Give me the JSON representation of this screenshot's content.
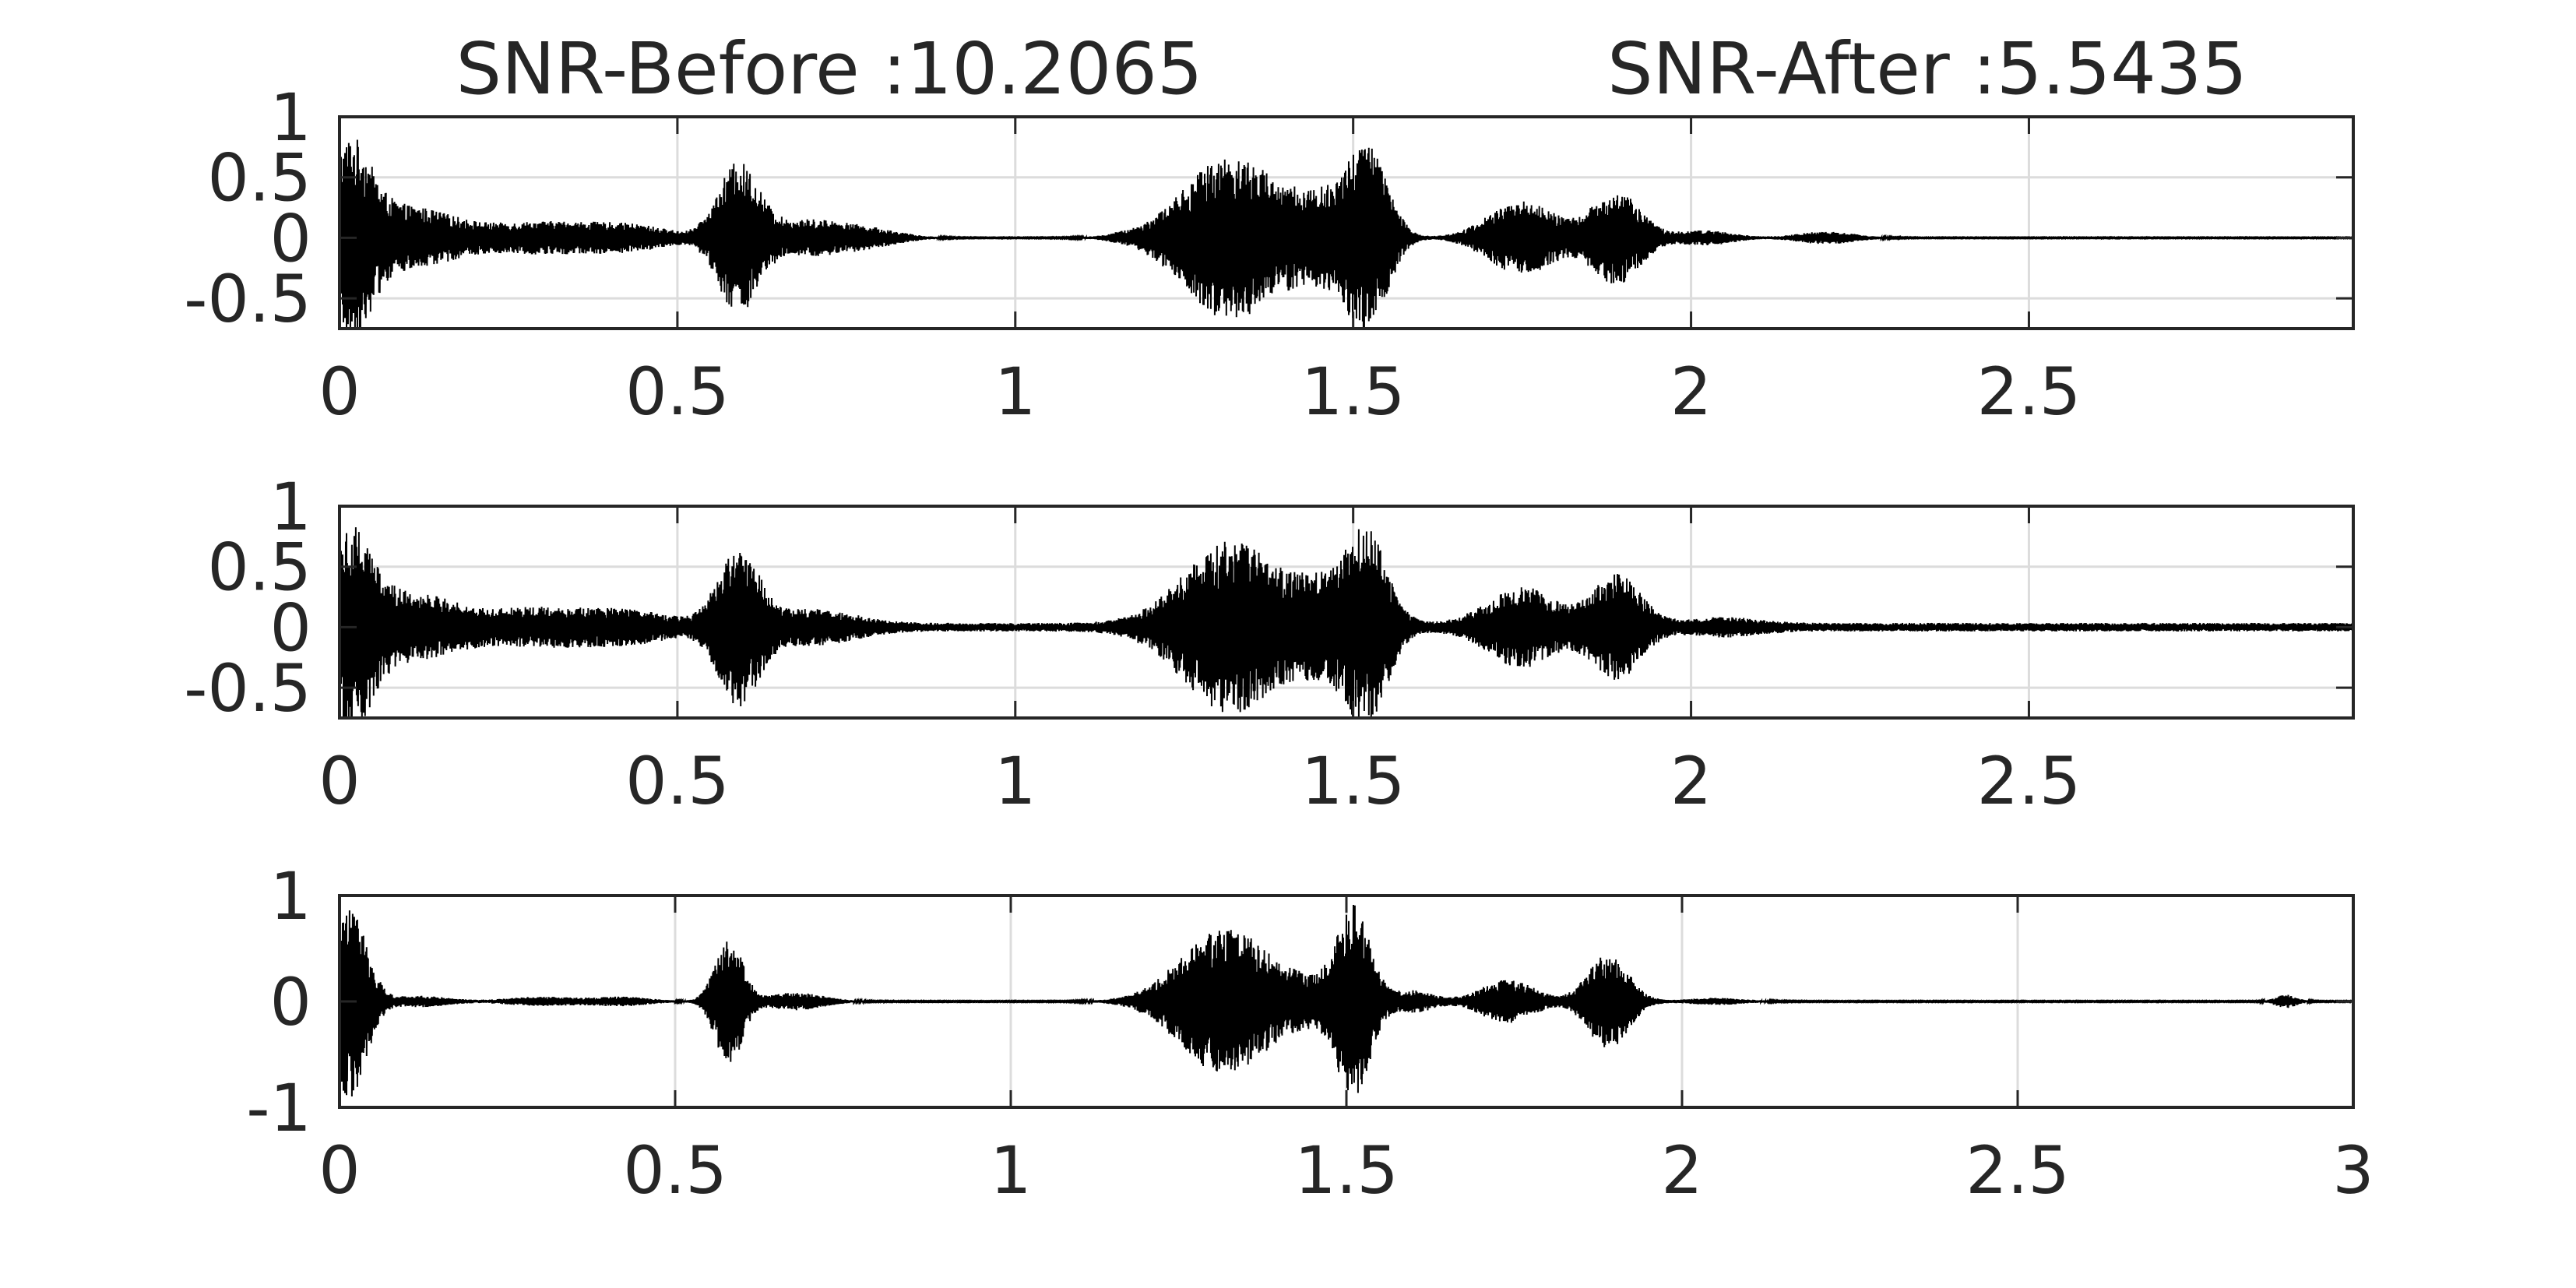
{
  "figure": {
    "titles": {
      "before": "SNR-Before :10.2065",
      "after": "SNR-After :5.5435"
    }
  },
  "colors": {
    "waveform": "#000000",
    "axes": "#262626",
    "grid": "#dcdcdc",
    "background": "#ffffff"
  },
  "chart_data": [
    {
      "type": "line",
      "name": "panel-1",
      "grid": true,
      "xlim": [
        0,
        2.98
      ],
      "ylim": [
        -0.75,
        1
      ],
      "xticks": [
        0,
        0.5,
        1,
        1.5,
        2,
        2.5
      ],
      "xtick_labels": [
        "0",
        "0.5",
        "1",
        "1.5",
        "2",
        "2.5"
      ],
      "yticks": [
        1,
        0.5,
        0,
        -0.5
      ],
      "ytick_labels": [
        "1",
        "0.5",
        "0",
        "-0.5"
      ],
      "noise_floor": 0.003,
      "bursts": [
        {
          "center": 0.015,
          "width": 0.03,
          "amp": 0.75
        },
        {
          "center": 0.08,
          "width": 0.05,
          "amp": 0.2
        },
        {
          "center": 0.15,
          "width": 0.05,
          "amp": 0.12
        },
        {
          "center": 0.26,
          "width": 0.06,
          "amp": 0.08
        },
        {
          "center": 0.36,
          "width": 0.07,
          "amp": 0.1
        },
        {
          "center": 0.45,
          "width": 0.05,
          "amp": 0.06
        },
        {
          "center": 0.59,
          "width": 0.03,
          "amp": 0.6
        },
        {
          "center": 0.7,
          "width": 0.06,
          "amp": 0.15
        },
        {
          "center": 0.8,
          "width": 0.04,
          "amp": 0.04
        },
        {
          "center": 1.15,
          "width": 0.015,
          "amp": 0.01
        },
        {
          "center": 1.32,
          "width": 0.07,
          "amp": 0.68
        },
        {
          "center": 1.45,
          "width": 0.035,
          "amp": 0.25
        },
        {
          "center": 1.52,
          "width": 0.03,
          "amp": 0.75
        },
        {
          "center": 1.75,
          "width": 0.05,
          "amp": 0.3
        },
        {
          "center": 1.89,
          "width": 0.035,
          "amp": 0.38
        },
        {
          "center": 2.02,
          "width": 0.04,
          "amp": 0.06
        },
        {
          "center": 2.2,
          "width": 0.04,
          "amp": 0.05
        }
      ]
    },
    {
      "type": "line",
      "name": "panel-2",
      "grid": true,
      "xlim": [
        0,
        2.98
      ],
      "ylim": [
        -0.75,
        1
      ],
      "xticks": [
        0,
        0.5,
        1,
        1.5,
        2,
        2.5
      ],
      "xtick_labels": [
        "0",
        "0.5",
        "1",
        "1.5",
        "2",
        "2.5"
      ],
      "yticks": [
        1,
        0.5,
        0,
        -0.5
      ],
      "ytick_labels": [
        "1",
        "0.5",
        "0",
        "-0.5"
      ],
      "noise_floor": 0.035,
      "bursts": [
        {
          "center": 0.015,
          "width": 0.03,
          "amp": 0.75
        },
        {
          "center": 0.08,
          "width": 0.05,
          "amp": 0.2
        },
        {
          "center": 0.15,
          "width": 0.05,
          "amp": 0.12
        },
        {
          "center": 0.26,
          "width": 0.06,
          "amp": 0.08
        },
        {
          "center": 0.36,
          "width": 0.07,
          "amp": 0.1
        },
        {
          "center": 0.45,
          "width": 0.05,
          "amp": 0.06
        },
        {
          "center": 0.59,
          "width": 0.03,
          "amp": 0.6
        },
        {
          "center": 0.7,
          "width": 0.06,
          "amp": 0.12
        },
        {
          "center": 1.32,
          "width": 0.07,
          "amp": 0.68
        },
        {
          "center": 1.45,
          "width": 0.035,
          "amp": 0.25
        },
        {
          "center": 1.52,
          "width": 0.03,
          "amp": 0.75
        },
        {
          "center": 1.75,
          "width": 0.05,
          "amp": 0.3
        },
        {
          "center": 1.89,
          "width": 0.035,
          "amp": 0.4
        },
        {
          "center": 2.05,
          "width": 0.05,
          "amp": 0.05
        }
      ]
    },
    {
      "type": "line",
      "name": "panel-3",
      "grid": true,
      "xlim": [
        0,
        3
      ],
      "ylim": [
        -1,
        1
      ],
      "xticks": [
        0,
        0.5,
        1,
        1.5,
        2,
        2.5,
        3
      ],
      "xtick_labels": [
        "0",
        "0.5",
        "1",
        "1.5",
        "2",
        "2.5",
        "3"
      ],
      "yticks": [
        1,
        0,
        -1
      ],
      "ytick_labels": [
        "1",
        "0",
        "-1"
      ],
      "noise_floor": 0.004,
      "bursts": [
        {
          "center": 0.015,
          "width": 0.025,
          "amp": 0.9
        },
        {
          "center": 0.12,
          "width": 0.04,
          "amp": 0.05
        },
        {
          "center": 0.3,
          "width": 0.05,
          "amp": 0.04
        },
        {
          "center": 0.42,
          "width": 0.04,
          "amp": 0.04
        },
        {
          "center": 0.58,
          "width": 0.02,
          "amp": 0.6
        },
        {
          "center": 0.68,
          "width": 0.04,
          "amp": 0.08
        },
        {
          "center": 1.32,
          "width": 0.065,
          "amp": 0.7
        },
        {
          "center": 1.44,
          "width": 0.03,
          "amp": 0.12
        },
        {
          "center": 1.51,
          "width": 0.025,
          "amp": 0.9
        },
        {
          "center": 1.6,
          "width": 0.03,
          "amp": 0.1
        },
        {
          "center": 1.74,
          "width": 0.04,
          "amp": 0.2
        },
        {
          "center": 1.89,
          "width": 0.03,
          "amp": 0.45
        },
        {
          "center": 2.05,
          "width": 0.04,
          "amp": 0.03
        },
        {
          "center": 2.9,
          "width": 0.015,
          "amp": 0.06
        }
      ]
    }
  ]
}
